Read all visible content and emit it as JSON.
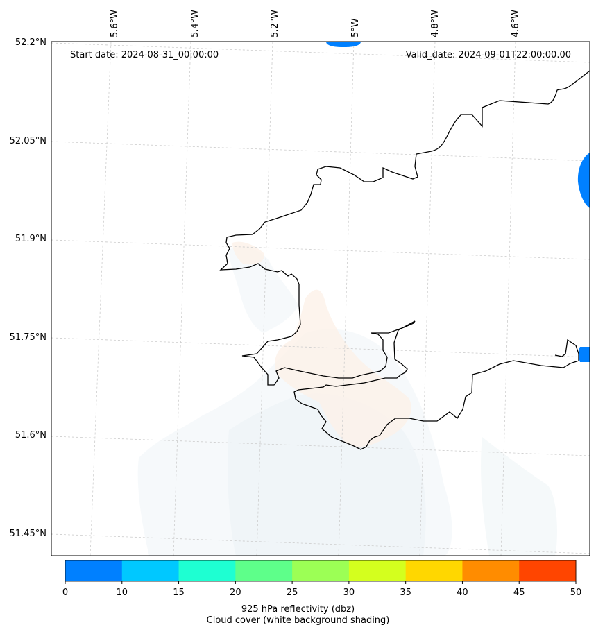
{
  "header": {
    "start_date": "Start date: 2024-08-31_00:00:00",
    "valid_date": "Valid_date: 2024-09-01T22:00:00.00"
  },
  "map": {
    "lon_labels": [
      "5.6°W",
      "5.4°W",
      "5.2°W",
      "5°W",
      "4.8°W",
      "4.6°W"
    ],
    "lat_labels": [
      "52.2°N",
      "52.05°N",
      "51.9°N",
      "51.75°N",
      "51.6°N",
      "51.45°N"
    ],
    "gridlines": true
  },
  "colorbar": {
    "ticks": [
      "0",
      "10",
      "15",
      "20",
      "25",
      "30",
      "35",
      "40",
      "45",
      "50"
    ],
    "colors": [
      "#0080ff",
      "#00c8ff",
      "#1effd2",
      "#5eff8a",
      "#9cff55",
      "#d4ff1e",
      "#ffd700",
      "#ff8c00",
      "#ff4500"
    ],
    "title_line1": "925 hPa reflectivity (dbz)",
    "title_line2": "Cloud cover (white background shading)"
  }
}
